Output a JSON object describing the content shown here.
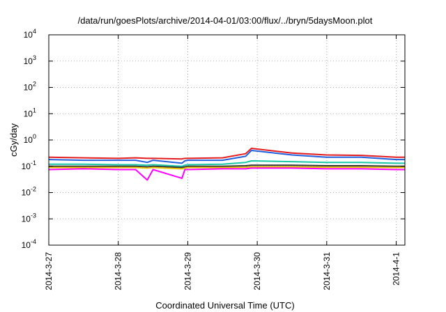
{
  "chart_data": {
    "type": "line",
    "title": "/data/run/goesPlots/archive/2014-04-01/03:00/flux/../bryn/5daysMoon.plot",
    "xlabel": "Coordinated Universal Time (UTC)",
    "ylabel": "cGy/day",
    "yscale": "log",
    "ylim": [
      0.0001,
      10000
    ],
    "xlim": [
      "2014-03-27",
      "2014-04-01T03:00"
    ],
    "grid": true,
    "y_ticks": [
      {
        "base": "10",
        "exp": "4"
      },
      {
        "base": "10",
        "exp": "3"
      },
      {
        "base": "10",
        "exp": "2"
      },
      {
        "base": "10",
        "exp": "1"
      },
      {
        "base": "10",
        "exp": "0"
      },
      {
        "base": "10",
        "exp": "-1"
      },
      {
        "base": "10",
        "exp": "-2"
      },
      {
        "base": "10",
        "exp": "-3"
      },
      {
        "base": "10",
        "exp": "-4"
      }
    ],
    "x_ticks": [
      "2014-3-27",
      "2014-3-28",
      "2014-3-29",
      "2014-3-30",
      "2014-3-31",
      "2014-4-1"
    ],
    "x": [
      "2014-03-27T00:00",
      "2014-03-27T12:00",
      "2014-03-28T00:00",
      "2014-03-28T06:00",
      "2014-03-28T10:00",
      "2014-03-28T12:00",
      "2014-03-28T22:00",
      "2014-03-28T23:00",
      "2014-03-29T00:00",
      "2014-03-29T12:00",
      "2014-03-29T20:00",
      "2014-03-29T22:00",
      "2014-03-30T06:00",
      "2014-03-30T12:00",
      "2014-03-31T00:00",
      "2014-03-31T12:00",
      "2014-04-01T00:00",
      "2014-04-01T03:00"
    ],
    "series": [
      {
        "color": "#e41a1c",
        "values": [
          0.22,
          0.21,
          0.2,
          0.21,
          0.2,
          0.2,
          0.19,
          0.2,
          0.2,
          0.21,
          0.3,
          0.48,
          0.38,
          0.32,
          0.27,
          0.26,
          0.22,
          0.22
        ]
      },
      {
        "color": "#1f5fe0",
        "values": [
          0.18,
          0.17,
          0.17,
          0.17,
          0.14,
          0.17,
          0.13,
          0.16,
          0.17,
          0.17,
          0.24,
          0.4,
          0.32,
          0.27,
          0.22,
          0.22,
          0.18,
          0.18
        ]
      },
      {
        "color": "#17c7a5",
        "values": [
          0.12,
          0.12,
          0.115,
          0.115,
          0.11,
          0.115,
          0.1,
          0.11,
          0.115,
          0.12,
          0.14,
          0.16,
          0.155,
          0.15,
          0.14,
          0.14,
          0.13,
          0.13
        ]
      },
      {
        "color": "#333333",
        "values": [
          0.1,
          0.1,
          0.1,
          0.1,
          0.095,
          0.1,
          0.09,
          0.095,
          0.1,
          0.1,
          0.105,
          0.11,
          0.11,
          0.11,
          0.105,
          0.105,
          0.1,
          0.1
        ]
      },
      {
        "color": "#e8c000",
        "values": [
          0.09,
          0.09,
          0.09,
          0.09,
          0.085,
          0.09,
          0.08,
          0.085,
          0.09,
          0.09,
          0.092,
          0.095,
          0.095,
          0.095,
          0.092,
          0.092,
          0.09,
          0.09
        ]
      },
      {
        "color": "#ff00ff",
        "values": [
          0.075,
          0.08,
          0.075,
          0.075,
          0.03,
          0.075,
          0.035,
          0.075,
          0.075,
          0.08,
          0.08,
          0.085,
          0.085,
          0.085,
          0.08,
          0.08,
          0.075,
          0.075
        ]
      }
    ]
  }
}
